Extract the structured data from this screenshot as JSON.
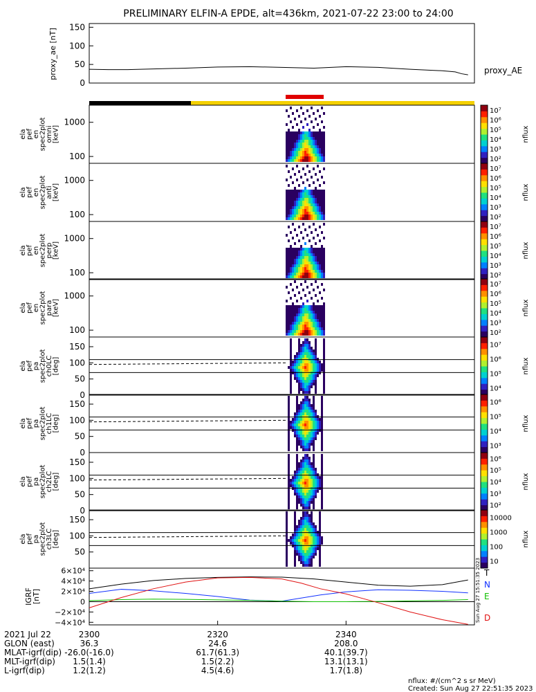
{
  "title": "PRELIMINARY ELFIN-A EPDE, alt=436km, 2021-07-22 23:00 to 24:00",
  "colors": {
    "sun": "#f4d000",
    "shadow": "#000000",
    "science": "#e00000",
    "T": "#000000",
    "N": "#1030ff",
    "E": "#10c000",
    "D": "#e01010"
  },
  "chart_data": [
    {
      "type": "line",
      "panel": "proxy_ae",
      "ylabel": "proxy_ae [nT]",
      "ylim": [
        0,
        160
      ],
      "yticks": [
        "0",
        "50",
        "100",
        "150"
      ],
      "series": [
        {
          "name": "proxy_AE",
          "x": [
            2300,
            2303,
            2306,
            2310,
            2315,
            2320,
            2325,
            2330,
            2335,
            2340,
            2345,
            2350,
            2355,
            2357,
            2358,
            2359
          ],
          "y": [
            37,
            36,
            36,
            38,
            40,
            43,
            44,
            42,
            40,
            44,
            42,
            37,
            33,
            30,
            25,
            22
          ]
        }
      ]
    },
    {
      "type": "heatmap",
      "panel": "omni_energy",
      "ylabel": [
        "ela",
        "pef",
        "en",
        "spec2plot",
        "omni",
        "[keV]"
      ],
      "yticks": [
        "100",
        "1000"
      ],
      "colorbar": {
        "label": "nflux",
        "ticks": [
          "10²",
          "10³",
          "10⁴",
          "10⁵",
          "10⁶",
          "10⁷"
        ]
      }
    },
    {
      "type": "heatmap",
      "panel": "anti_energy",
      "ylabel": [
        "ela",
        "pef",
        "en",
        "spec2plot",
        "anti",
        "[keV]"
      ],
      "yticks": [
        "100",
        "1000"
      ],
      "colorbar": {
        "label": "nflux",
        "ticks": [
          "10²",
          "10³",
          "10⁴",
          "10⁵",
          "10⁶",
          "10⁷"
        ]
      }
    },
    {
      "type": "heatmap",
      "panel": "perp_energy",
      "ylabel": [
        "ela",
        "pef",
        "en",
        "spec2plot",
        "perp",
        "[keV]"
      ],
      "yticks": [
        "100",
        "1000"
      ],
      "colorbar": {
        "label": "nflux",
        "ticks": [
          "10²",
          "10³",
          "10⁴",
          "10⁵",
          "10⁶",
          "10⁷"
        ]
      }
    },
    {
      "type": "heatmap",
      "panel": "para_energy",
      "ylabel": [
        "ela",
        "pef",
        "en",
        "spec2plot",
        "para",
        "[keV]"
      ],
      "yticks": [
        "100",
        "1000"
      ],
      "colorbar": {
        "label": "nflux",
        "ticks": [
          "10²",
          "10³",
          "10⁴",
          "10⁵",
          "10⁶",
          "10⁷"
        ]
      }
    },
    {
      "type": "heatmap",
      "panel": "ch0LC",
      "ylabel": [
        "ela",
        "pef",
        "pa",
        "spec2plot",
        "ch0LC",
        "[deg]"
      ],
      "yticks": [
        "0",
        "50",
        "100",
        "150"
      ],
      "colorbar": {
        "label": "nflux",
        "ticks": [
          "10⁴",
          "10⁵",
          "10⁶",
          "10⁷"
        ]
      }
    },
    {
      "type": "heatmap",
      "panel": "ch1LC",
      "ylabel": [
        "ela",
        "pef",
        "pa",
        "spec2plot",
        "ch1LC",
        "[deg]"
      ],
      "yticks": [
        "0",
        "50",
        "100",
        "150"
      ],
      "colorbar": {
        "label": "nflux",
        "ticks": [
          "10³",
          "10⁴",
          "10⁵",
          "10⁶"
        ]
      }
    },
    {
      "type": "heatmap",
      "panel": "ch2LC",
      "ylabel": [
        "ela",
        "pef",
        "pa",
        "spec2plot",
        "ch2LC",
        "[deg]"
      ],
      "yticks": [
        "0",
        "50",
        "100",
        "150"
      ],
      "colorbar": {
        "label": "nflux",
        "ticks": [
          "10²",
          "10³",
          "10⁴",
          "10⁵",
          "10⁶"
        ]
      }
    },
    {
      "type": "heatmap",
      "panel": "ch3LC",
      "ylabel": [
        "ela",
        "pef",
        "pa",
        "spec2plot",
        "ch3LC",
        "[deg]"
      ],
      "yticks": [
        "50",
        "100",
        "150"
      ],
      "colorbar": {
        "label": "nflux",
        "ticks": [
          "10",
          "100",
          "1000",
          "10000"
        ]
      }
    },
    {
      "type": "line",
      "panel": "bt89",
      "ylabel": [
        "IGRF",
        "[nT]"
      ],
      "ylim": [
        -45000,
        65000
      ],
      "yticks": [
        "−4×10⁴",
        "−2×10⁴",
        "0",
        "2×10⁴",
        "4×10⁴",
        "6×10⁴"
      ],
      "series": [
        {
          "name": "T",
          "x": [
            2300,
            2305,
            2310,
            2315,
            2320,
            2325,
            2330,
            2335,
            2340,
            2345,
            2350,
            2355,
            2359
          ],
          "y": [
            25000,
            34000,
            41000,
            45000,
            47000,
            48000,
            47500,
            44000,
            38000,
            32000,
            30000,
            33000,
            42000
          ]
        },
        {
          "name": "N",
          "x": [
            2300,
            2305,
            2310,
            2315,
            2320,
            2325,
            2330,
            2333,
            2336,
            2340,
            2345,
            2350,
            2355,
            2359
          ],
          "y": [
            16000,
            24000,
            21000,
            16000,
            10000,
            3000,
            1000,
            7000,
            13000,
            19000,
            23000,
            22000,
            20000,
            17000
          ]
        },
        {
          "name": "E",
          "x": [
            2300,
            2305,
            2310,
            2315,
            2320,
            2325,
            2330,
            2335,
            2340,
            2345,
            2350,
            2355,
            2359
          ],
          "y": [
            2000,
            4000,
            5000,
            4500,
            3500,
            2500,
            1000,
            0,
            0,
            500,
            1500,
            2500,
            4000
          ]
        },
        {
          "name": "D",
          "x": [
            2300,
            2305,
            2310,
            2315,
            2320,
            2325,
            2330,
            2333,
            2336,
            2340,
            2345,
            2350,
            2355,
            2359
          ],
          "y": [
            -12000,
            8000,
            25000,
            38000,
            46000,
            47000,
            44000,
            36000,
            25000,
            15000,
            -2000,
            -20000,
            -35000,
            -44000
          ]
        }
      ]
    }
  ],
  "xaxis": {
    "ticks": [
      "2300",
      "2320",
      "2340"
    ],
    "rows": [
      {
        "label": "2021 Jul 22",
        "values": [
          "2300",
          "2320",
          "2340"
        ]
      },
      {
        "label": "GLON (east)",
        "values": [
          "36.3",
          "24.6",
          "208.0"
        ]
      },
      {
        "label": "MLAT-igrf(dip)",
        "values": [
          "-26.0(-16.0)",
          "61.7(61.3)",
          "40.1(39.7)"
        ]
      },
      {
        "label": "MLT-igrf(dip)",
        "values": [
          "1.5(1.4)",
          "1.5(2.2)",
          "13.1(13.1)"
        ]
      },
      {
        "label": "L-igrf(dip)",
        "values": [
          "1.2(1.2)",
          "4.5(4.6)",
          "1.7(1.8)"
        ]
      }
    ]
  },
  "footer": {
    "units": "nflux: #/(cm^2 s sr MeV)",
    "created": "Created: Sun Aug 27 22:51:35 2023",
    "side_stamp": "Sun Aug 27 15:51:35 2023"
  }
}
